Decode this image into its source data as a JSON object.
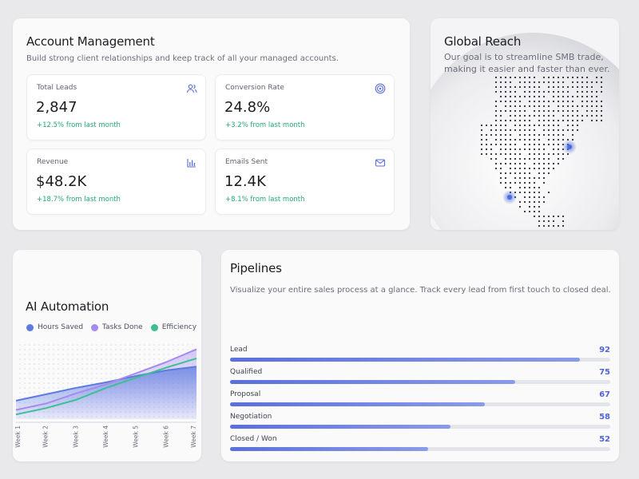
{
  "account": {
    "title": "Account Management",
    "subtitle": "Build strong client relationships and keep track of all your managed accounts.",
    "stats": [
      {
        "label": "Total Leads",
        "value": "2,847",
        "change": "+12.5% from last month",
        "icon": "users-icon"
      },
      {
        "label": "Conversion Rate",
        "value": "24.8%",
        "change": "+3.2% from last month",
        "icon": "target-icon"
      },
      {
        "label": "Revenue",
        "value": "$48.2K",
        "change": "+18.7% from last month",
        "icon": "bar-chart-icon"
      },
      {
        "label": "Emails Sent",
        "value": "12.4K",
        "change": "+8.1% from last month",
        "icon": "mail-icon"
      }
    ]
  },
  "reach": {
    "title": "Global Reach",
    "subtitle": "Our goal is to streamline SMB trade, making it easier and faster than ever."
  },
  "ai": {
    "title": "AI Automation",
    "legend": [
      {
        "name": "Hours Saved",
        "color": "#5b7be0"
      },
      {
        "name": "Tasks Done",
        "color": "#a58bf0"
      },
      {
        "name": "Efficiency",
        "color": "#3dbf93"
      }
    ]
  },
  "chart_data": {
    "type": "area",
    "categories": [
      "Week 1",
      "Week 2",
      "Week 3",
      "Week 4",
      "Week 5",
      "Week 6",
      "Week 7"
    ],
    "series": [
      {
        "name": "Hours Saved",
        "values": [
          20,
          27,
          34,
          40,
          47,
          53,
          57
        ]
      },
      {
        "name": "Tasks Done",
        "values": [
          10,
          17,
          28,
          38,
          50,
          62,
          76
        ]
      },
      {
        "name": "Efficiency",
        "values": [
          5,
          12,
          21,
          34,
          45,
          56,
          66
        ]
      }
    ],
    "ylim": [
      0,
      85
    ],
    "grid": false,
    "legend": "top-left"
  },
  "pipeline": {
    "title": "Pipelines",
    "subtitle": "Visualize your entire sales process at a glance. Track every lead from first touch to closed deal.",
    "stages": [
      {
        "label": "Lead",
        "value": "92",
        "fraction": 0.92
      },
      {
        "label": "Qualified",
        "value": "75",
        "fraction": 0.75
      },
      {
        "label": "Proposal",
        "value": "67",
        "fraction": 0.67
      },
      {
        "label": "Negotiation",
        "value": "58",
        "fraction": 0.58
      },
      {
        "label": "Closed / Won",
        "value": "52",
        "fraction": 0.52
      }
    ]
  }
}
